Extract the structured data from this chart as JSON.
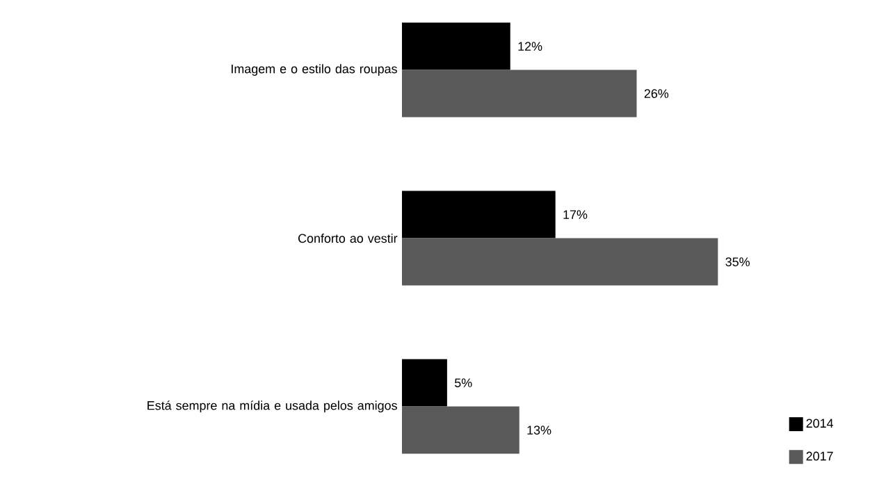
{
  "chart_data": {
    "type": "bar",
    "orientation": "horizontal",
    "categories": [
      "Imagem e o estilo das roupas",
      "Conforto ao vestir",
      "Está sempre na mídia e usada pelos amigos"
    ],
    "series": [
      {
        "name": "2014",
        "color": "#000000",
        "values": [
          12,
          17,
          5
        ],
        "value_labels": [
          "12%",
          "17%",
          "5%"
        ]
      },
      {
        "name": "2017",
        "color": "#595959",
        "values": [
          26,
          35,
          13
        ],
        "value_labels": [
          "26%",
          "35%",
          "13%"
        ]
      }
    ],
    "legend": "bottom right"
  }
}
